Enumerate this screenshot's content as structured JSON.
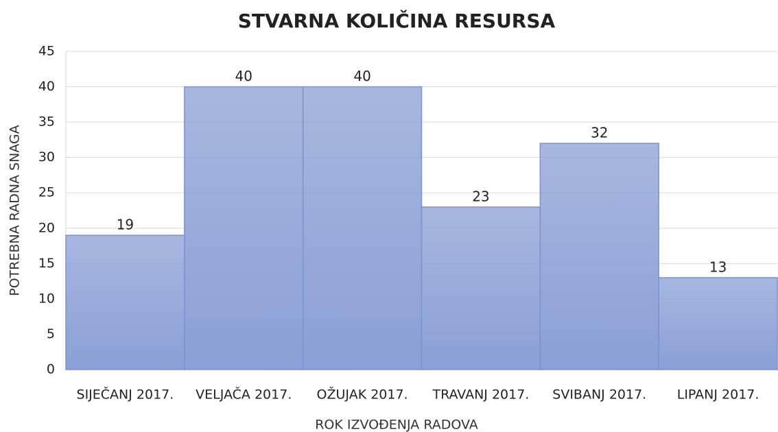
{
  "chart_data": {
    "type": "bar",
    "title": "STVARNA KOLIČINA RESURSA",
    "x_label": "ROK IZVOĐENJA RADOVA",
    "y_label": "POTREBNA RADNA SNAGA",
    "categories": [
      "SIJEČANJ 2017.",
      "VELJAČA 2017.",
      "OŽUJAK 2017.",
      "TRAVANJ 2017.",
      "SVIBANJ 2017.",
      "LIPANJ 2017."
    ],
    "values": [
      19,
      40,
      40,
      23,
      32,
      13
    ],
    "color": "#8a9fd6",
    "ylim": [
      0,
      45
    ],
    "yticks": [
      0,
      5,
      10,
      15,
      20,
      25,
      30,
      35,
      40,
      45
    ],
    "grid": true
  }
}
